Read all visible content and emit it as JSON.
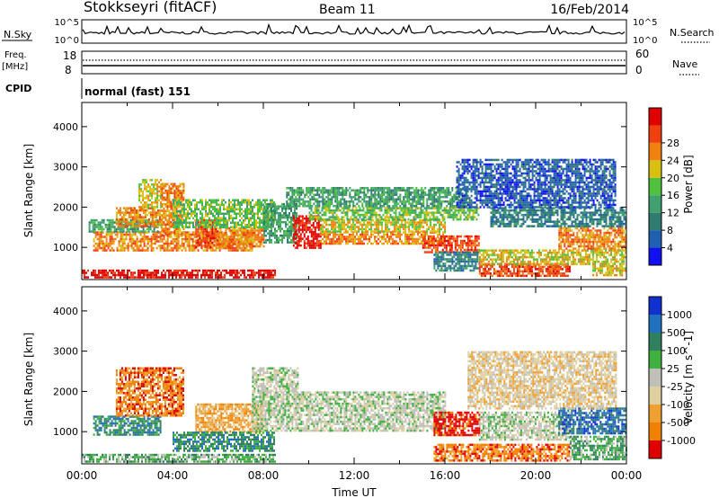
{
  "header": {
    "station": "Stokkseyri (fitACF)",
    "beam": "Beam 11",
    "date": "16/Feb/2014"
  },
  "status_panels": {
    "nsky_label": "N.Sky",
    "nsky_top_tick": "10^5",
    "nsky_bottom_tick": "10^0",
    "nsearch_label": "N.Search",
    "freq_label": "Freq.",
    "freq_unit": "[MHz]",
    "freq_top_tick": "18",
    "freq_bottom_tick": "8",
    "nave_top_tick": "60",
    "nave_bottom_tick": "0",
    "nave_label": "Nave",
    "cpid_label": "CPID",
    "cpid_value": "normal (fast) 151"
  },
  "chart_data": [
    {
      "type": "heatmap",
      "name": "power-panel",
      "ylabel": "Slant Range [km]",
      "xlabel": "",
      "ylim": [
        200,
        4600
      ],
      "yticks": [
        1000,
        2000,
        3000,
        4000
      ],
      "xlim": [
        0,
        24
      ],
      "colorbar_label": "Power [dB]",
      "colorbar_ticks": [
        "4",
        "8",
        "12",
        "16",
        "20",
        "24",
        "28"
      ],
      "colors": [
        "#1010f0",
        "#2060b0",
        "#307a70",
        "#40a070",
        "#50c040",
        "#d8c010",
        "#f08010",
        "#f04010",
        "#e00000"
      ],
      "regions": [
        {
          "t0": 0.0,
          "t1": 8.5,
          "r0": 250,
          "r1": 450,
          "level": 8
        },
        {
          "t0": 0.5,
          "t1": 7.5,
          "r0": 900,
          "r1": 1400,
          "level": 6
        },
        {
          "t0": 0.3,
          "t1": 3.5,
          "r0": 1400,
          "r1": 1700,
          "level": 3
        },
        {
          "t0": 1.5,
          "t1": 3.5,
          "r0": 1500,
          "r1": 2000,
          "level": 6
        },
        {
          "t0": 2.5,
          "t1": 3.5,
          "r0": 2000,
          "r1": 2700,
          "level": 5
        },
        {
          "t0": 3.5,
          "t1": 4.5,
          "r0": 1300,
          "r1": 2600,
          "level": 6
        },
        {
          "t0": 5.0,
          "t1": 6.0,
          "r0": 1000,
          "r1": 1700,
          "level": 7
        },
        {
          "t0": 6.0,
          "t1": 8.0,
          "r0": 1000,
          "r1": 1500,
          "level": 6
        },
        {
          "t0": 4.0,
          "t1": 8.5,
          "r0": 1500,
          "r1": 2200,
          "level": 4
        },
        {
          "t0": 8.0,
          "t1": 9.5,
          "r0": 1100,
          "r1": 2100,
          "level": 3
        },
        {
          "t0": 9.3,
          "t1": 10.5,
          "r0": 1000,
          "r1": 1800,
          "level": 8
        },
        {
          "t0": 10.5,
          "t1": 16.0,
          "r0": 1100,
          "r1": 1400,
          "level": 6
        },
        {
          "t0": 10.5,
          "t1": 16.0,
          "r0": 1400,
          "r1": 1700,
          "level": 5
        },
        {
          "t0": 10.0,
          "t1": 17.5,
          "r0": 1700,
          "r1": 2000,
          "level": 4
        },
        {
          "t0": 15.0,
          "t1": 17.5,
          "r0": 900,
          "r1": 1300,
          "level": 7
        },
        {
          "t0": 9.0,
          "t1": 17.0,
          "r0": 2000,
          "r1": 2500,
          "level": 3
        },
        {
          "t0": 15.5,
          "t1": 17.5,
          "r0": 400,
          "r1": 900,
          "level": 2
        },
        {
          "t0": 17.5,
          "t1": 21.5,
          "r0": 300,
          "r1": 600,
          "level": 7
        },
        {
          "t0": 17.5,
          "t1": 22.5,
          "r0": 600,
          "r1": 950,
          "level": 5
        },
        {
          "t0": 21.0,
          "t1": 24.0,
          "r0": 950,
          "r1": 1500,
          "level": 6
        },
        {
          "t0": 22.5,
          "t1": 24.0,
          "r0": 300,
          "r1": 950,
          "level": 5
        },
        {
          "t0": 18.0,
          "t1": 24.0,
          "r0": 1500,
          "r1": 2000,
          "level": 2
        },
        {
          "t0": 16.5,
          "t1": 23.5,
          "r0": 2000,
          "r1": 3200,
          "level": 1
        }
      ]
    },
    {
      "type": "heatmap",
      "name": "velocity-panel",
      "ylabel": "Slant Range [km]",
      "xlabel": "Time UT",
      "ylim": [
        200,
        4600
      ],
      "yticks": [
        1000,
        2000,
        3000,
        4000
      ],
      "xlim": [
        0,
        24
      ],
      "xticks": [
        "00:00",
        "04:00",
        "08:00",
        "12:00",
        "16:00",
        "20:00",
        "00:00"
      ],
      "colorbar_label": "Velocity [m s^-1]",
      "colorbar_ticks": [
        "1000",
        "500",
        "100",
        "25",
        "-25",
        "-100",
        "-500",
        "-1000"
      ],
      "colors": [
        "#1030d0",
        "#2070c0",
        "#308060",
        "#40b040",
        "#c0c0b8",
        "#e0d0a0",
        "#f0a030",
        "#f08000",
        "#e00000"
      ],
      "regions": [
        {
          "t0": 0.0,
          "t1": 8.5,
          "r0": 250,
          "r1": 450,
          "level": 3
        },
        {
          "t0": 0.5,
          "t1": 3.5,
          "r0": 900,
          "r1": 1400,
          "level": 2
        },
        {
          "t0": 1.5,
          "t1": 4.5,
          "r0": 1400,
          "r1": 2600,
          "level": 7
        },
        {
          "t0": 5.0,
          "t1": 8.0,
          "r0": 1000,
          "r1": 1700,
          "level": 6
        },
        {
          "t0": 4.0,
          "t1": 8.5,
          "r0": 500,
          "r1": 1000,
          "level": 2
        },
        {
          "t0": 7.5,
          "t1": 16.0,
          "r0": 1000,
          "r1": 2000,
          "level": 4
        },
        {
          "t0": 7.5,
          "t1": 9.5,
          "r0": 2000,
          "r1": 2600,
          "level": 4
        },
        {
          "t0": 15.5,
          "t1": 17.5,
          "r0": 900,
          "r1": 1500,
          "level": 8
        },
        {
          "t0": 15.5,
          "t1": 21.5,
          "r0": 300,
          "r1": 700,
          "level": 7
        },
        {
          "t0": 17.5,
          "t1": 21.5,
          "r0": 800,
          "r1": 1500,
          "level": 4
        },
        {
          "t0": 21.0,
          "t1": 24.0,
          "r0": 950,
          "r1": 1600,
          "level": 1
        },
        {
          "t0": 21.5,
          "t1": 24.0,
          "r0": 300,
          "r1": 900,
          "level": 3
        },
        {
          "t0": 17.0,
          "t1": 23.5,
          "r0": 1600,
          "r1": 3000,
          "level": 5
        }
      ]
    }
  ]
}
